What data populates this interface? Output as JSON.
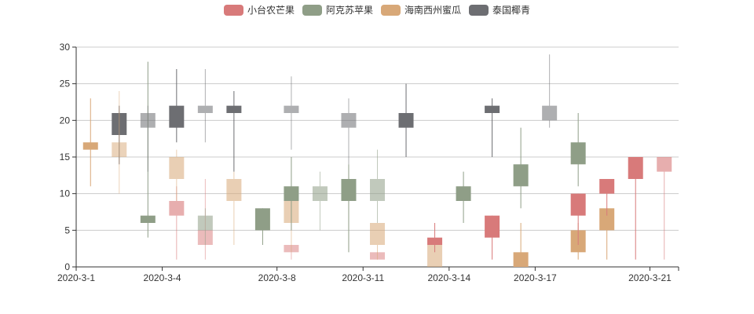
{
  "chart_data": {
    "type": "candlestick",
    "legend": {
      "placement": "top-center",
      "items": [
        {
          "name": "小台农芒果",
          "color": "#d87a7a"
        },
        {
          "name": "阿克苏苹果",
          "color": "#8f9e87"
        },
        {
          "name": "海南西州蜜瓜",
          "color": "#d8a878"
        },
        {
          "name": "泰国椰青",
          "color": "#6d6e72"
        }
      ]
    },
    "x_tick_labels": [
      "2020-3-1",
      "2020-3-4",
      "2020-3-8",
      "2020-3-11",
      "2020-3-14",
      "2020-3-17",
      "2020-3-21"
    ],
    "y_ticks": [
      0,
      5,
      10,
      15,
      20,
      25,
      30
    ],
    "ylim": [
      0,
      30
    ],
    "grid": "horizontal",
    "categories": [
      "2020-3-1",
      "2020-3-2",
      "2020-3-3",
      "2020-3-4",
      "2020-3-5",
      "2020-3-6",
      "2020-3-7",
      "2020-3-8",
      "2020-3-9",
      "2020-3-10",
      "2020-3-11",
      "2020-3-12",
      "2020-3-13",
      "2020-3-14",
      "2020-3-15",
      "2020-3-16",
      "2020-3-17",
      "2020-3-18",
      "2020-3-19",
      "2020-3-20",
      "2020-3-21"
    ],
    "colors": {
      "up": "#7a8f73",
      "down": "#d9777a",
      "wick": "#c8b49a"
    },
    "candles": [
      {
        "series": "海南西州蜜瓜",
        "date": "2020-3-1",
        "open": 16,
        "close": 17,
        "low": 11,
        "high": 23,
        "color": "#d8a878",
        "opacity": 1
      },
      {
        "series": "泰国椰青",
        "date": "2020-3-2",
        "open": 18,
        "close": 21,
        "low": 14,
        "high": 22,
        "color": "#6d6e72",
        "opacity": 1
      },
      {
        "series": "海南西州蜜瓜",
        "date": "2020-3-2",
        "open": 15,
        "close": 17,
        "low": 10,
        "high": 24,
        "color": "#d8a878",
        "opacity": 0.5
      },
      {
        "series": "阿克苏苹果",
        "date": "2020-3-3",
        "open": 6,
        "close": 7,
        "low": 4,
        "high": 28,
        "color": "#8f9e87",
        "opacity": 1
      },
      {
        "series": "泰国椰青",
        "date": "2020-3-3",
        "open": 19,
        "close": 21,
        "low": 13,
        "high": 22,
        "color": "#6d6e72",
        "opacity": 0.55
      },
      {
        "series": "小台农芒果",
        "date": "2020-3-4",
        "open": 7,
        "close": 9,
        "low": 1,
        "high": 11,
        "color": "#d87a7a",
        "opacity": 0.6
      },
      {
        "series": "海南西州蜜瓜",
        "date": "2020-3-4",
        "open": 12,
        "close": 15,
        "low": 9,
        "high": 16,
        "color": "#d8a878",
        "opacity": 0.55
      },
      {
        "series": "泰国椰青",
        "date": "2020-3-4",
        "open": 19,
        "close": 22,
        "low": 17,
        "high": 27,
        "color": "#6d6e72",
        "opacity": 1
      },
      {
        "series": "小台农芒果",
        "date": "2020-3-5",
        "open": 3,
        "close": 5,
        "low": 1,
        "high": 12,
        "color": "#d87a7a",
        "opacity": 0.5
      },
      {
        "series": "阿克苏苹果",
        "date": "2020-3-5",
        "open": 5,
        "close": 7,
        "low": 3,
        "high": 8,
        "color": "#8f9e87",
        "opacity": 0.55
      },
      {
        "series": "泰国椰青",
        "date": "2020-3-5",
        "open": 21,
        "close": 22,
        "low": 17,
        "high": 27,
        "color": "#6d6e72",
        "opacity": 0.55
      },
      {
        "series": "海南西州蜜瓜",
        "date": "2020-3-6",
        "open": 9,
        "close": 12,
        "low": 3,
        "high": 13,
        "color": "#d8a878",
        "opacity": 0.55
      },
      {
        "series": "泰国椰青",
        "date": "2020-3-6",
        "open": 21,
        "close": 22,
        "low": 13,
        "high": 24,
        "color": "#6d6e72",
        "opacity": 1
      },
      {
        "series": "阿克苏苹果",
        "date": "2020-3-7",
        "open": 5,
        "close": 8,
        "low": 3,
        "high": 8,
        "color": "#8f9e87",
        "opacity": 1
      },
      {
        "series": "小台农芒果",
        "date": "2020-3-8",
        "open": 2,
        "close": 3,
        "low": 1,
        "high": 3,
        "color": "#d87a7a",
        "opacity": 0.5
      },
      {
        "series": "海南西州蜜瓜",
        "date": "2020-3-8",
        "open": 6,
        "close": 9,
        "low": 2,
        "high": 10,
        "color": "#d8a878",
        "opacity": 0.55
      },
      {
        "series": "阿克苏苹果",
        "date": "2020-3-8",
        "open": 9,
        "close": 11,
        "low": 5,
        "high": 15,
        "color": "#8f9e87",
        "opacity": 1
      },
      {
        "series": "泰国椰青",
        "date": "2020-3-8",
        "open": 21,
        "close": 22,
        "low": 16,
        "high": 26,
        "color": "#6d6e72",
        "opacity": 0.55
      },
      {
        "series": "阿克苏苹果",
        "date": "2020-3-9",
        "open": 9,
        "close": 11,
        "low": 5,
        "high": 13,
        "color": "#8f9e87",
        "opacity": 0.55
      },
      {
        "series": "阿克苏苹果",
        "date": "2020-3-10",
        "open": 9,
        "close": 12,
        "low": 2,
        "high": 14,
        "color": "#8f9e87",
        "opacity": 1
      },
      {
        "series": "泰国椰青",
        "date": "2020-3-10",
        "open": 19,
        "close": 21,
        "low": 14,
        "high": 23,
        "color": "#6d6e72",
        "opacity": 0.55
      },
      {
        "series": "小台农芒果",
        "date": "2020-3-11",
        "open": 1,
        "close": 2,
        "low": 1,
        "high": 2,
        "color": "#d87a7a",
        "opacity": 0.5
      },
      {
        "series": "海南西州蜜瓜",
        "date": "2020-3-11",
        "open": 3,
        "close": 6,
        "low": 1,
        "high": 6,
        "color": "#d8a878",
        "opacity": 0.55
      },
      {
        "series": "阿克苏苹果",
        "date": "2020-3-11",
        "open": 9,
        "close": 12,
        "low": 6,
        "high": 16,
        "color": "#8f9e87",
        "opacity": 0.55
      },
      {
        "series": "泰国椰青",
        "date": "2020-3-12",
        "open": 19,
        "close": 21,
        "low": 15,
        "high": 25,
        "color": "#6d6e72",
        "opacity": 1
      },
      {
        "series": "海南西州蜜瓜",
        "date": "2020-3-13",
        "open": 0,
        "close": 3,
        "low": 0,
        "high": 3,
        "color": "#d8a878",
        "opacity": 0.55
      },
      {
        "series": "小台农芒果",
        "date": "2020-3-13",
        "open": 3,
        "close": 4,
        "low": 2,
        "high": 6,
        "color": "#d87a7a",
        "opacity": 1
      },
      {
        "series": "阿克苏苹果",
        "date": "2020-3-14",
        "open": 9,
        "close": 11,
        "low": 6,
        "high": 13,
        "color": "#8f9e87",
        "opacity": 1
      },
      {
        "series": "小台农芒果",
        "date": "2020-3-15",
        "open": 4,
        "close": 7,
        "low": 1,
        "high": 7,
        "color": "#d87a7a",
        "opacity": 1
      },
      {
        "series": "泰国椰青",
        "date": "2020-3-15",
        "open": 21,
        "close": 22,
        "low": 15,
        "high": 23,
        "color": "#6d6e72",
        "opacity": 1
      },
      {
        "series": "海南西州蜜瓜",
        "date": "2020-3-16",
        "open": 0,
        "close": 2,
        "low": 0,
        "high": 6,
        "color": "#d8a878",
        "opacity": 1
      },
      {
        "series": "阿克苏苹果",
        "date": "2020-3-16",
        "open": 11,
        "close": 14,
        "low": 8,
        "high": 19,
        "color": "#8f9e87",
        "opacity": 1
      },
      {
        "series": "泰国椰青",
        "date": "2020-3-17",
        "open": 20,
        "close": 22,
        "low": 19,
        "high": 29,
        "color": "#6d6e72",
        "opacity": 0.55
      },
      {
        "series": "海南西州蜜瓜",
        "date": "2020-3-18",
        "open": 2,
        "close": 5,
        "low": 1,
        "high": 6,
        "color": "#d8a878",
        "opacity": 1
      },
      {
        "series": "小台农芒果",
        "date": "2020-3-18",
        "open": 7,
        "close": 10,
        "low": 3,
        "high": 10,
        "color": "#d87a7a",
        "opacity": 1
      },
      {
        "series": "阿克苏苹果",
        "date": "2020-3-18",
        "open": 14,
        "close": 17,
        "low": 11,
        "high": 21,
        "color": "#8f9e87",
        "opacity": 1
      },
      {
        "series": "海南西州蜜瓜",
        "date": "2020-3-19",
        "open": 5,
        "close": 8,
        "low": 1,
        "high": 8,
        "color": "#d8a878",
        "opacity": 1
      },
      {
        "series": "小台农芒果",
        "date": "2020-3-19",
        "open": 10,
        "close": 12,
        "low": 7,
        "high": 12,
        "color": "#d87a7a",
        "opacity": 1
      },
      {
        "series": "小台农芒果",
        "date": "2020-3-20",
        "open": 12,
        "close": 15,
        "low": 1,
        "high": 15,
        "color": "#d87a7a",
        "opacity": 1
      },
      {
        "series": "小台农芒果",
        "date": "2020-3-21",
        "open": 13,
        "close": 15,
        "low": 1,
        "high": 15,
        "color": "#d87a7a",
        "opacity": 0.6
      }
    ]
  }
}
